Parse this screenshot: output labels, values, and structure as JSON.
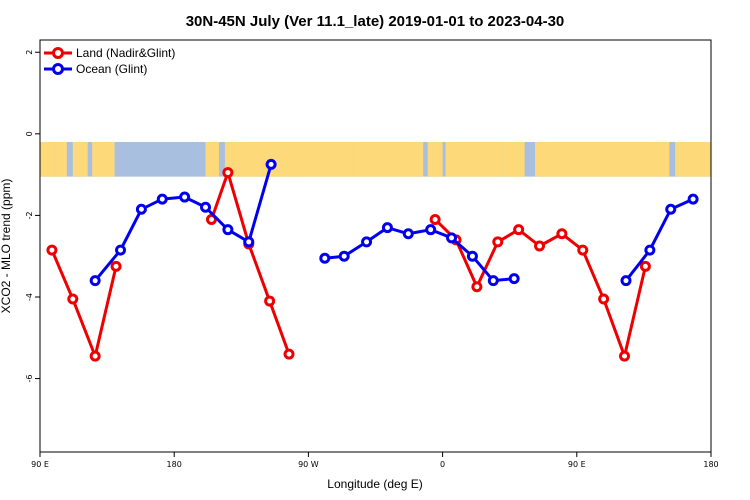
{
  "chart_data": {
    "type": "line",
    "title": "30N-45N July (Ver 11.1_late)   2019-01-01 to 2023-04-30",
    "xlabel": "Longitude (deg E)",
    "ylabel": "XCO2 - MLO trend (ppm)",
    "x_ticks": [
      {
        "value": 90,
        "label": "90 E"
      },
      {
        "value": 180,
        "label": "180"
      },
      {
        "value": 270,
        "label": "90 W"
      },
      {
        "value": 360,
        "label": "0"
      },
      {
        "value": 450,
        "label": "90 E"
      },
      {
        "value": 540,
        "label": "180"
      }
    ],
    "y_ticks": [
      {
        "value": 2,
        "label": "2"
      },
      {
        "value": 0,
        "label": "0"
      },
      {
        "value": -2,
        "label": "-2"
      },
      {
        "value": -4,
        "label": "-4"
      },
      {
        "value": -6,
        "label": "-6"
      }
    ],
    "xlim": [
      90,
      540
    ],
    "ylim": [
      -7.8,
      2.3
    ],
    "grid": false,
    "legend_position": "top-left",
    "map_band": {
      "y_top": -0.2,
      "y_bottom": -1.05,
      "ocean_color": "#a9bfe0",
      "land_color": "#fdd97a"
    },
    "series": [
      {
        "name": "Land (Nadir&Glint)",
        "color": "#ee0000",
        "segments": [
          [
            [
              98,
              -2.85
            ],
            [
              112,
              -4.05
            ],
            [
              127,
              -5.45
            ],
            [
              141,
              -3.25
            ]
          ],
          [
            [
              205,
              -2.1
            ],
            [
              216,
              -0.95
            ],
            [
              230,
              -2.7
            ],
            [
              244,
              -4.1
            ],
            [
              257,
              -5.4
            ]
          ],
          [
            [
              355,
              -2.1
            ],
            [
              369,
              -2.6
            ],
            [
              383,
              -3.75
            ],
            [
              397,
              -2.65
            ],
            [
              411,
              -2.35
            ],
            [
              425,
              -2.75
            ],
            [
              440,
              -2.45
            ],
            [
              454,
              -2.85
            ],
            [
              468,
              -4.05
            ],
            [
              482,
              -5.45
            ],
            [
              496,
              -3.25
            ]
          ]
        ]
      },
      {
        "name": "Ocean (Glint)",
        "color": "#0000ee",
        "segments": [
          [
            [
              127,
              -3.6
            ],
            [
              144,
              -2.85
            ],
            [
              158,
              -1.85
            ],
            [
              172,
              -1.6
            ],
            [
              187,
              -1.55
            ],
            [
              201,
              -1.8
            ],
            [
              216,
              -2.35
            ],
            [
              230,
              -2.65
            ],
            [
              245,
              -0.75
            ]
          ],
          [
            [
              281,
              -3.05
            ],
            [
              294,
              -3.0
            ],
            [
              309,
              -2.65
            ],
            [
              323,
              -2.3
            ],
            [
              337,
              -2.45
            ],
            [
              352,
              -2.35
            ],
            [
              366,
              -2.55
            ],
            [
              380,
              -3.0
            ],
            [
              394,
              -3.6
            ],
            [
              408,
              -3.55
            ]
          ],
          [
            [
              483,
              -3.6
            ],
            [
              499,
              -2.85
            ],
            [
              513,
              -1.85
            ],
            [
              528,
              -1.6
            ]
          ]
        ]
      }
    ]
  }
}
